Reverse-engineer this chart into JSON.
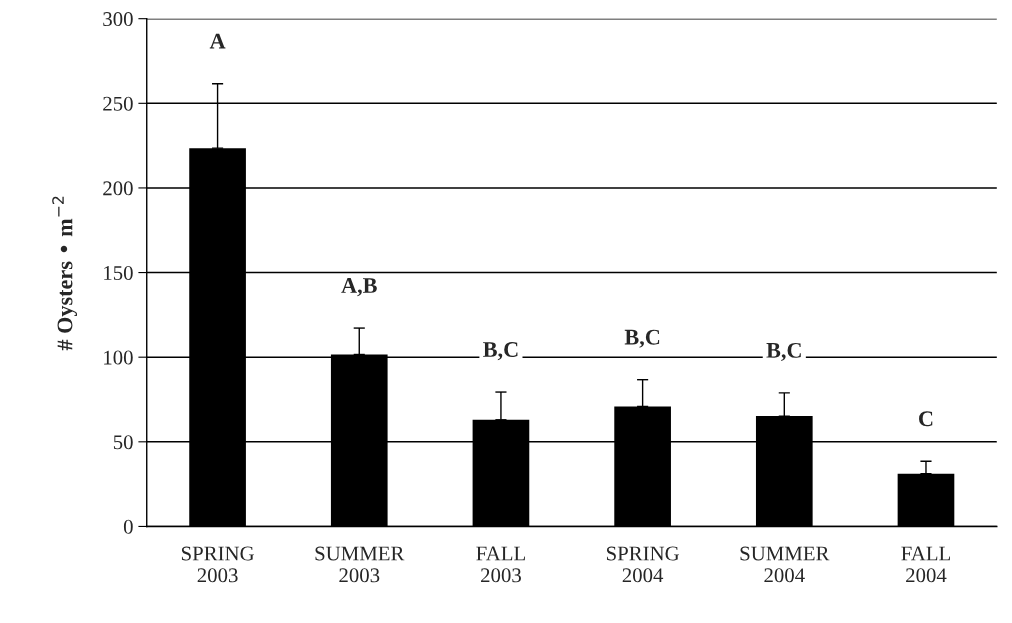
{
  "chart_data": {
    "type": "bar",
    "categories": [
      "SPRING\n2003",
      "SUMMER\n2003",
      "FALL\n2003",
      "SPRING\n2004",
      "SUMMER\n2004",
      "FALL\n2004"
    ],
    "values": [
      223.5,
      101.6,
      63,
      70.9,
      65.2,
      31.2
    ],
    "errors": [
      [
        223.5,
        261.6
      ],
      [
        101.6,
        117.2
      ],
      [
        63,
        79.4
      ],
      [
        70.9,
        86.7
      ],
      [
        65.2,
        78.9
      ],
      [
        31.2,
        38.5
      ]
    ],
    "color": "#000000",
    "ylabel": "# Oysters • m$^{−2}$",
    "ylim": [
      0,
      300
    ],
    "yticks": [
      0,
      50,
      100,
      150,
      200,
      250,
      300
    ],
    "grid": "y",
    "annotations": [
      "A",
      "A,B",
      "B,C",
      "B,C",
      "B,C",
      "C"
    ]
  }
}
